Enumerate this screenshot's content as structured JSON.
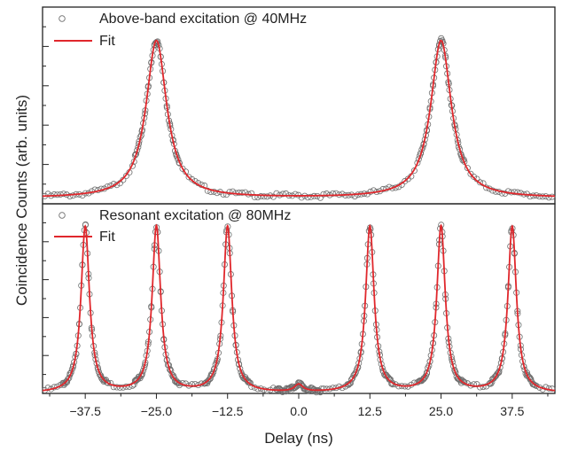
{
  "figure": {
    "ylabel": "Coincidence Counts (arb. units)",
    "xlabel": "Delay (ns)"
  },
  "colors": {
    "fit": "#e0272c",
    "data_marker": "#6f6f6f",
    "axis": "#222222"
  },
  "chart_data": [
    {
      "type": "scatter",
      "panel": "top",
      "legend": [
        "Above-band excitation @ 40MHz",
        "Fit"
      ],
      "legend_position": "top-left",
      "xlim": [
        -45,
        45
      ],
      "ylim": [
        0,
        1.05
      ],
      "x_ticks_labeled": false,
      "y_ticks_labeled": false,
      "peaks": [
        {
          "delay_ns": -25.0,
          "height": 0.87
        },
        {
          "delay_ns": 25.0,
          "height": 0.87
        }
      ],
      "baseline": 0.03,
      "peak_halfwidth_ns": 2.2,
      "series": [
        {
          "name": "Above-band excitation @ 40MHz",
          "kind": "markers",
          "marker": "open-circle"
        },
        {
          "name": "Fit",
          "kind": "line"
        }
      ]
    },
    {
      "type": "scatter",
      "panel": "bottom",
      "legend": [
        "Resonant excitation @ 80MHz",
        "Fit"
      ],
      "legend_position": "top-left",
      "xlim": [
        -45,
        45
      ],
      "ylim": [
        0,
        1.05
      ],
      "x_ticks": [
        -37.5,
        -25.0,
        -12.5,
        0.0,
        12.5,
        25.0,
        37.5
      ],
      "x_tick_labels": [
        "−37.5",
        "−25.0",
        "−12.5",
        "0.0",
        "12.5",
        "25.0",
        "37.5"
      ],
      "y_ticks_labeled": false,
      "peaks": [
        {
          "delay_ns": -37.5,
          "height": 0.92
        },
        {
          "delay_ns": -25.0,
          "height": 0.92
        },
        {
          "delay_ns": -12.5,
          "height": 0.92
        },
        {
          "delay_ns": 0.0,
          "height": 0.04
        },
        {
          "delay_ns": 12.5,
          "height": 0.92
        },
        {
          "delay_ns": 25.0,
          "height": 0.92
        },
        {
          "delay_ns": 37.5,
          "height": 0.92
        }
      ],
      "baseline": 0.0,
      "peak_halfwidth_ns": 0.9,
      "series": [
        {
          "name": "Resonant excitation @ 80MHz",
          "kind": "markers",
          "marker": "open-circle"
        },
        {
          "name": "Fit",
          "kind": "line"
        }
      ]
    }
  ]
}
